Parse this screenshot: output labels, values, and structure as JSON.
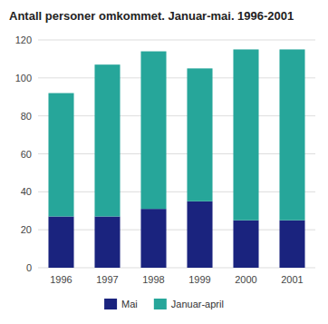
{
  "chart_data": {
    "type": "bar",
    "stacked": true,
    "title": "Antall personer omkommet. Januar-mai. 1996-2001",
    "categories": [
      "1996",
      "1997",
      "1998",
      "1999",
      "2000",
      "2001"
    ],
    "series": [
      {
        "name": "Mai",
        "color": "#1a237e",
        "values": [
          27,
          27,
          31,
          35,
          25,
          25
        ]
      },
      {
        "name": "Januar-april",
        "color": "#26a69a",
        "values": [
          65,
          80,
          83,
          70,
          90,
          90
        ]
      }
    ],
    "ylim": [
      0,
      120
    ],
    "yticks": [
      0,
      20,
      40,
      60,
      80,
      100,
      120
    ],
    "grid": true,
    "legend": "bottom"
  }
}
